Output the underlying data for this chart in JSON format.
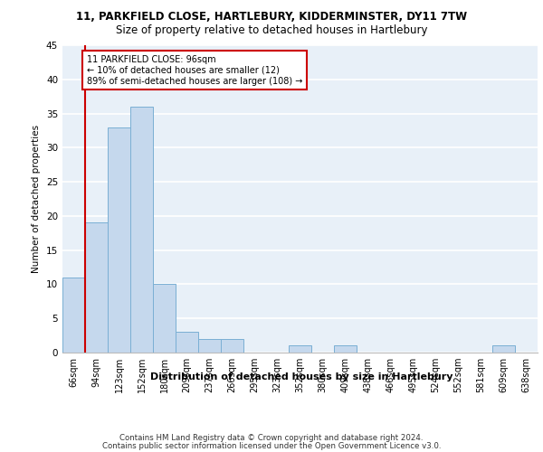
{
  "title1": "11, PARKFIELD CLOSE, HARTLEBURY, KIDDERMINSTER, DY11 7TW",
  "title2": "Size of property relative to detached houses in Hartlebury",
  "xlabel": "Distribution of detached houses by size in Hartlebury",
  "ylabel": "Number of detached properties",
  "bar_color": "#c5d8ed",
  "bar_edge_color": "#7aafd4",
  "bg_color": "#e8f0f8",
  "grid_color": "#ffffff",
  "categories": [
    "66sqm",
    "94sqm",
    "123sqm",
    "152sqm",
    "180sqm",
    "209sqm",
    "237sqm",
    "266sqm",
    "295sqm",
    "323sqm",
    "352sqm",
    "380sqm",
    "409sqm",
    "438sqm",
    "466sqm",
    "495sqm",
    "524sqm",
    "552sqm",
    "581sqm",
    "609sqm",
    "638sqm"
  ],
  "values": [
    11,
    19,
    33,
    36,
    10,
    3,
    2,
    2,
    0,
    0,
    1,
    0,
    1,
    0,
    0,
    0,
    0,
    0,
    0,
    1,
    0
  ],
  "ylim": [
    0,
    45
  ],
  "yticks": [
    0,
    5,
    10,
    15,
    20,
    25,
    30,
    35,
    40,
    45
  ],
  "vline_color": "#cc0000",
  "annotation_text": "11 PARKFIELD CLOSE: 96sqm\n← 10% of detached houses are smaller (12)\n89% of semi-detached houses are larger (108) →",
  "annotation_box_color": "#cc0000",
  "footer1": "Contains HM Land Registry data © Crown copyright and database right 2024.",
  "footer2": "Contains public sector information licensed under the Open Government Licence v3.0."
}
